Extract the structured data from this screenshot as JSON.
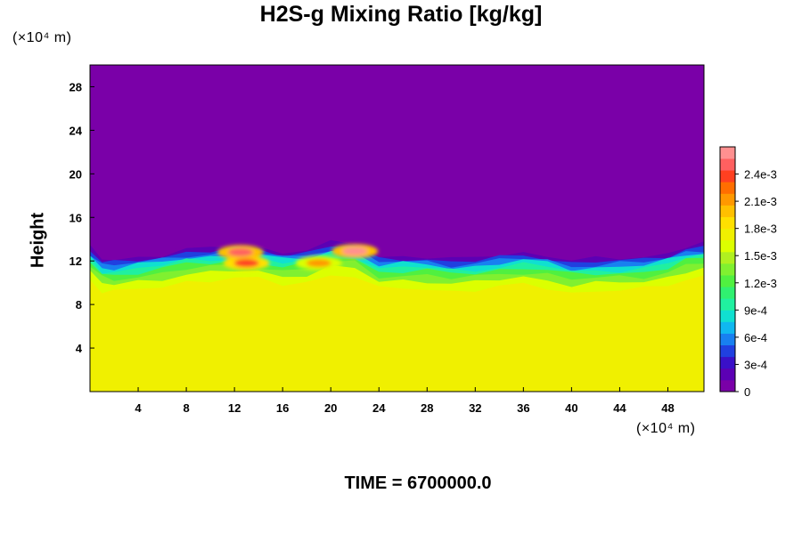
{
  "title": "H2S-g Mixing Ratio [kg/kg]",
  "y_unit": "(×10⁴ m)",
  "x_unit": "(×10⁴ m)",
  "ylabel": "Height",
  "time_label": "TIME = 6700000.0",
  "chart_data": {
    "type": "heatmap",
    "title": "H2S-g Mixing Ratio [kg/kg]",
    "ylabel": "Height",
    "xlim": [
      0,
      51
    ],
    "ylim": [
      0,
      30
    ],
    "x_ticks": [
      4,
      8,
      12,
      16,
      20,
      24,
      28,
      32,
      36,
      40,
      44,
      48
    ],
    "y_ticks": [
      4,
      8,
      12,
      16,
      20,
      24,
      28
    ],
    "colorbar": {
      "range": [
        0,
        0.0027
      ],
      "tick_values": [
        0,
        0.0003,
        0.0006,
        0.0009,
        0.0012,
        0.0015,
        0.0018,
        0.0021,
        0.0024
      ],
      "tick_labels": [
        "0",
        "3e-4",
        "6e-4",
        "9e-4",
        "1.2e-3",
        "1.5e-3",
        "1.8e-3",
        "2.1e-3",
        "2.4e-3"
      ],
      "colors": [
        "#7a00a8",
        "#5c00b4",
        "#3a10c8",
        "#2040e0",
        "#1880f0",
        "#10b8f0",
        "#10e0d0",
        "#20f0a0",
        "#30f070",
        "#50f040",
        "#80f030",
        "#b0f020",
        "#dcff00",
        "#f0f000",
        "#ffe000",
        "#ffc000",
        "#ff9800",
        "#ff6e00",
        "#ff4020",
        "#ff6060",
        "#ff9090"
      ]
    },
    "profile": {
      "description_note": "mixing ratio vs height: ~1.75e-3 below ~10, transition band 10-13, ~0 above interface",
      "x": [
        0,
        1,
        2,
        4,
        6,
        8,
        10,
        12,
        14,
        16,
        18,
        20,
        22,
        24,
        26,
        28,
        30,
        32,
        34,
        36,
        38,
        40,
        42,
        44,
        46,
        48,
        49.5,
        51
      ],
      "interface_height": [
        13.5,
        12.4,
        12.3,
        12.6,
        12.9,
        13.3,
        13.4,
        13.6,
        13.5,
        13.1,
        13.3,
        13.9,
        13.8,
        12.6,
        12.7,
        12.7,
        12.4,
        12.5,
        12.8,
        13.0,
        12.8,
        12.3,
        12.4,
        12.5,
        12.6,
        13.0,
        13.6,
        13.8
      ],
      "base_value": 0.00175
    },
    "hotspots": [
      {
        "x": 13.0,
        "y": 11.8,
        "value": 0.0024
      },
      {
        "x": 12.5,
        "y": 12.8,
        "value": 0.0025
      },
      {
        "x": 22.0,
        "y": 12.9,
        "value": 0.0026
      },
      {
        "x": 19.0,
        "y": 11.8,
        "value": 0.0021
      }
    ]
  }
}
